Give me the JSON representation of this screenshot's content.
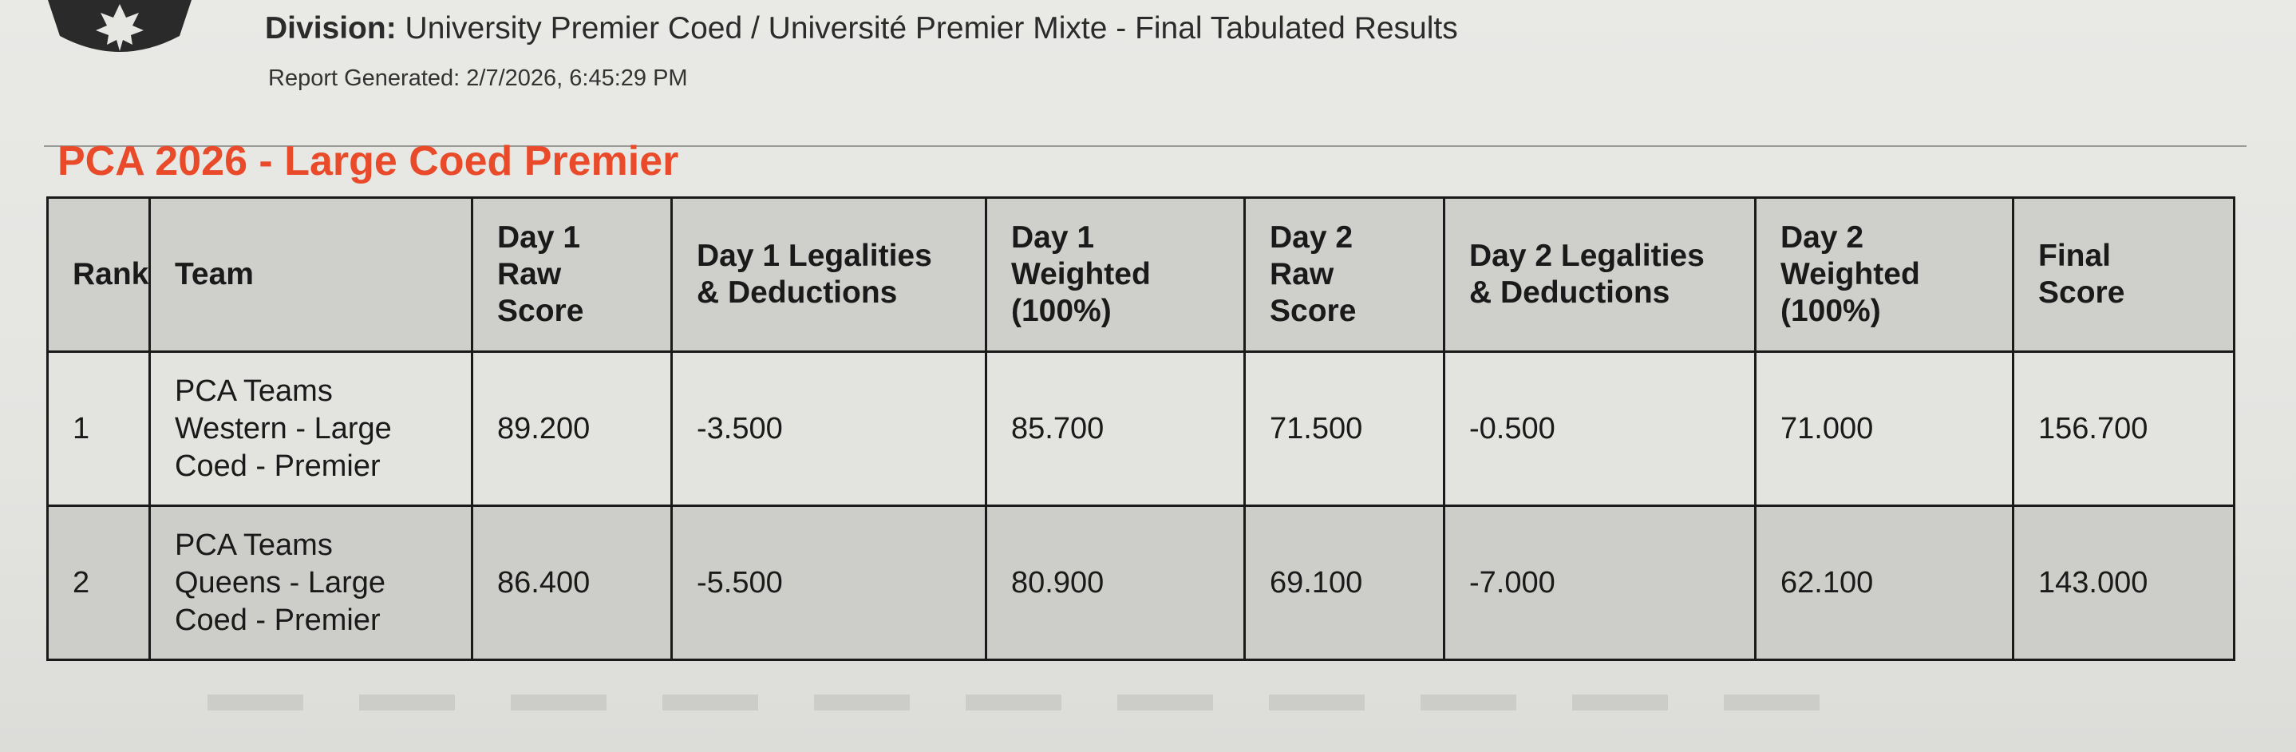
{
  "header": {
    "division_label": "Division:",
    "division_value": "University Premier Coed / Université Premier Mixte - Final Tabulated Results",
    "report_generated": "Report Generated: 2/7/2026, 6:45:29 PM"
  },
  "section_title": "PCA 2026 - Large Coed Premier",
  "table": {
    "headers": {
      "rank": "Rank",
      "team": "Team",
      "day1_raw_l1": "Day 1",
      "day1_raw_l2": "Raw",
      "day1_raw_l3": "Score",
      "day1_leg_l1": "Day 1 Legalities",
      "day1_leg_l2": "& Deductions",
      "day1_w_l1": "Day 1",
      "day1_w_l2": "Weighted",
      "day1_w_l3": "(100%)",
      "day2_raw_l1": "Day 2",
      "day2_raw_l2": "Raw",
      "day2_raw_l3": "Score",
      "day2_leg_l1": "Day 2 Legalities",
      "day2_leg_l2": "& Deductions",
      "day2_w_l1": "Day 2",
      "day2_w_l2": "Weighted",
      "day2_w_l3": "(100%)",
      "final_l1": "Final",
      "final_l2": "Score"
    },
    "rows": [
      {
        "rank": "1",
        "team_l1": "PCA Teams",
        "team_l2": "Western - Large",
        "team_l3": "Coed - Premier",
        "day1_raw": "89.200",
        "day1_leg": "-3.500",
        "day1_weighted": "85.700",
        "day2_raw": "71.500",
        "day2_leg": "-0.500",
        "day2_weighted": "71.000",
        "final": "156.700"
      },
      {
        "rank": "2",
        "team_l1": "PCA Teams",
        "team_l2": "Queens - Large",
        "team_l3": "Coed - Premier",
        "day1_raw": "86.400",
        "day1_leg": "-5.500",
        "day1_weighted": "80.900",
        "day2_raw": "69.100",
        "day2_leg": "-7.000",
        "day2_weighted": "62.100",
        "final": "143.000"
      }
    ]
  },
  "colors": {
    "section_title": "#e84a2a",
    "border": "#1a1a1a",
    "header_bg": "#cfcfcc"
  },
  "icons": {
    "logo": "maple-leaf-crest-icon"
  }
}
